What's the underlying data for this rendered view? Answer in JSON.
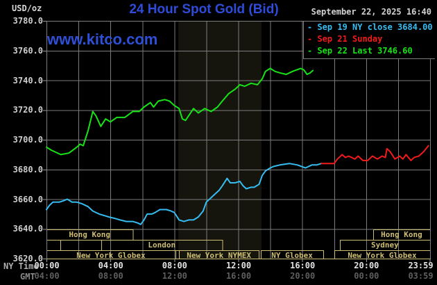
{
  "header": {
    "unit_label": "USD/oz",
    "title": "24 Hour Spot Gold (Bid)",
    "datetime": "September 22, 2025 16:40",
    "watermark": "www.kitco.com"
  },
  "legend": {
    "items": [
      {
        "dash": "-",
        "label": "Sep 19 NY close 3684.00",
        "color": "#35bdf2"
      },
      {
        "dash": "-",
        "label": "Sep 21 Sunday",
        "color": "#f21b1b"
      },
      {
        "dash": "-",
        "label": "Sep 22 Last 3746.60",
        "color": "#17e317"
      }
    ]
  },
  "axes": {
    "ny_time_label": "NY Time",
    "gmt_label": "GMT"
  },
  "chart_data": {
    "type": "line",
    "title": "24 Hour Spot Gold (Bid)",
    "ylabel": "USD/oz",
    "xlabel": "NY Time / GMT",
    "xlim": [
      0,
      24
    ],
    "ylim": [
      3620,
      3780
    ],
    "grid": true,
    "legend_position": "top-right",
    "y_ticks": [
      {
        "v": 3780,
        "label": "3780.0"
      },
      {
        "v": 3760,
        "label": "3760.0"
      },
      {
        "v": 3740,
        "label": "3740.0"
      },
      {
        "v": 3720,
        "label": "3720.0"
      },
      {
        "v": 3700,
        "label": "3700.0"
      },
      {
        "v": 3680,
        "label": "3680.0"
      },
      {
        "v": 3660,
        "label": "3660.0"
      },
      {
        "v": 3640,
        "label": "3640.0"
      },
      {
        "v": 3620,
        "label": "3620.0"
      }
    ],
    "x_ticks": [
      {
        "h": 0,
        "ny": "00:00",
        "gmt": "04:00"
      },
      {
        "h": 4,
        "ny": "04:00",
        "gmt": "08:00"
      },
      {
        "h": 8,
        "ny": "08:00",
        "gmt": "12:00"
      },
      {
        "h": 12,
        "ny": "12:00",
        "gmt": "16:00"
      },
      {
        "h": 16,
        "ny": "16:00",
        "gmt": "20:00"
      },
      {
        "h": 20,
        "ny": "20:00",
        "gmt": "00:00"
      },
      {
        "h": 23.98,
        "ny": "23:59",
        "gmt": "03:59"
      }
    ],
    "nymex_band_hours": [
      8.25,
      13.45
    ],
    "colors": {
      "grid": "#7d7d7d",
      "band": "#15150d",
      "session": "#cdbd72",
      "tick": "#9a9a9a",
      "bottom_border": "#cdbd72"
    },
    "series": [
      {
        "name": "Sep 22 Last",
        "color": "#17e317",
        "last_value": 3746.6,
        "points": [
          [
            0.0,
            3695
          ],
          [
            0.3,
            3693
          ],
          [
            0.9,
            3690
          ],
          [
            1.4,
            3691
          ],
          [
            1.9,
            3695
          ],
          [
            2.1,
            3697
          ],
          [
            2.3,
            3696
          ],
          [
            2.6,
            3706
          ],
          [
            2.9,
            3719
          ],
          [
            3.1,
            3716
          ],
          [
            3.4,
            3709
          ],
          [
            3.7,
            3714
          ],
          [
            4.0,
            3712
          ],
          [
            4.4,
            3715
          ],
          [
            4.9,
            3715
          ],
          [
            5.4,
            3719
          ],
          [
            5.8,
            3719
          ],
          [
            6.1,
            3722
          ],
          [
            6.5,
            3725
          ],
          [
            6.7,
            3722
          ],
          [
            7.0,
            3726
          ],
          [
            7.4,
            3727
          ],
          [
            7.7,
            3726
          ],
          [
            8.0,
            3723
          ],
          [
            8.3,
            3721
          ],
          [
            8.5,
            3714
          ],
          [
            8.7,
            3713
          ],
          [
            9.2,
            3721
          ],
          [
            9.5,
            3718
          ],
          [
            9.9,
            3721
          ],
          [
            10.3,
            3719
          ],
          [
            10.7,
            3722
          ],
          [
            11.0,
            3726
          ],
          [
            11.4,
            3731
          ],
          [
            11.8,
            3734
          ],
          [
            12.1,
            3737
          ],
          [
            12.4,
            3736
          ],
          [
            12.8,
            3738
          ],
          [
            13.2,
            3737
          ],
          [
            13.5,
            3741
          ],
          [
            13.7,
            3746
          ],
          [
            14.0,
            3748
          ],
          [
            14.3,
            3746
          ],
          [
            14.6,
            3745
          ],
          [
            15.0,
            3744
          ],
          [
            15.4,
            3746
          ],
          [
            15.9,
            3748
          ],
          [
            16.1,
            3747
          ],
          [
            16.3,
            3744
          ],
          [
            16.5,
            3745
          ],
          [
            16.67,
            3746.6
          ]
        ]
      },
      {
        "name": "Sep 19 NY close",
        "color": "#35bdf2",
        "last_value": 3684.0,
        "points": [
          [
            0.0,
            3653
          ],
          [
            0.2,
            3656
          ],
          [
            0.4,
            3658
          ],
          [
            0.8,
            3658
          ],
          [
            1.1,
            3659
          ],
          [
            1.3,
            3660
          ],
          [
            1.6,
            3658
          ],
          [
            1.9,
            3658
          ],
          [
            2.2,
            3657
          ],
          [
            2.6,
            3655
          ],
          [
            2.9,
            3652
          ],
          [
            3.3,
            3650
          ],
          [
            3.9,
            3648
          ],
          [
            4.3,
            3647
          ],
          [
            4.6,
            3646
          ],
          [
            5.0,
            3645
          ],
          [
            5.4,
            3645
          ],
          [
            5.7,
            3644
          ],
          [
            5.9,
            3643
          ],
          [
            6.1,
            3646
          ],
          [
            6.3,
            3650
          ],
          [
            6.6,
            3650
          ],
          [
            6.8,
            3651
          ],
          [
            7.1,
            3653
          ],
          [
            7.5,
            3653
          ],
          [
            7.8,
            3652
          ],
          [
            8.0,
            3651
          ],
          [
            8.3,
            3646
          ],
          [
            8.6,
            3645
          ],
          [
            8.9,
            3646
          ],
          [
            9.2,
            3646
          ],
          [
            9.5,
            3648
          ],
          [
            9.8,
            3652
          ],
          [
            10.0,
            3658
          ],
          [
            10.3,
            3661
          ],
          [
            10.5,
            3663
          ],
          [
            10.8,
            3666
          ],
          [
            11.0,
            3669
          ],
          [
            11.3,
            3674
          ],
          [
            11.5,
            3671
          ],
          [
            11.8,
            3671
          ],
          [
            12.1,
            3672
          ],
          [
            12.3,
            3669
          ],
          [
            12.5,
            3667
          ],
          [
            12.8,
            3668
          ],
          [
            13.0,
            3668
          ],
          [
            13.3,
            3670
          ],
          [
            13.5,
            3676
          ],
          [
            13.7,
            3679
          ],
          [
            14.0,
            3681
          ],
          [
            14.2,
            3682
          ],
          [
            14.6,
            3683
          ],
          [
            15.2,
            3684
          ],
          [
            15.7,
            3683
          ],
          [
            16.2,
            3681
          ],
          [
            16.6,
            3683
          ],
          [
            16.9,
            3683
          ],
          [
            17.2,
            3684
          ]
        ]
      },
      {
        "name": "Sep 21 Sunday",
        "color": "#f21b1b",
        "last_value": 3696,
        "points": [
          [
            17.2,
            3684
          ],
          [
            18.0,
            3684
          ],
          [
            18.2,
            3687
          ],
          [
            18.5,
            3690
          ],
          [
            18.7,
            3688
          ],
          [
            18.9,
            3689
          ],
          [
            19.3,
            3687
          ],
          [
            19.5,
            3689
          ],
          [
            19.8,
            3686
          ],
          [
            20.1,
            3686
          ],
          [
            20.4,
            3689
          ],
          [
            20.7,
            3687
          ],
          [
            21.0,
            3689
          ],
          [
            21.2,
            3688
          ],
          [
            21.3,
            3694
          ],
          [
            21.5,
            3692
          ],
          [
            21.8,
            3687
          ],
          [
            22.1,
            3689
          ],
          [
            22.3,
            3687
          ],
          [
            22.5,
            3690
          ],
          [
            22.8,
            3686
          ],
          [
            23.0,
            3688
          ],
          [
            23.3,
            3689
          ],
          [
            23.6,
            3692
          ],
          [
            23.9,
            3696
          ]
        ]
      }
    ],
    "sessions": [
      {
        "row": 0,
        "start": 0,
        "end": 5.4,
        "label": "Hong Kong"
      },
      {
        "row": 0,
        "start": 20.44,
        "end": 24,
        "label": "Hong Kong"
      },
      {
        "row": 1,
        "start": 0,
        "end": 0.87,
        "label": ""
      },
      {
        "row": 1,
        "start": 0.87,
        "end": 3.43,
        "label": ""
      },
      {
        "row": 1,
        "start": 3.43,
        "end": 11.0,
        "label": "London"
      },
      {
        "row": 1,
        "start": 18.35,
        "end": 24,
        "label": "Sydney"
      },
      {
        "row": 2,
        "start": 0,
        "end": 8.07,
        "label": "New York Globex"
      },
      {
        "row": 2,
        "start": 8.3,
        "end": 13.28,
        "label": "New York NYMEX"
      },
      {
        "row": 2,
        "start": 13.41,
        "end": 17.32,
        "label": "NY Globex"
      },
      {
        "row": 2,
        "start": 18.01,
        "end": 24,
        "label": "New York Globex"
      }
    ]
  }
}
